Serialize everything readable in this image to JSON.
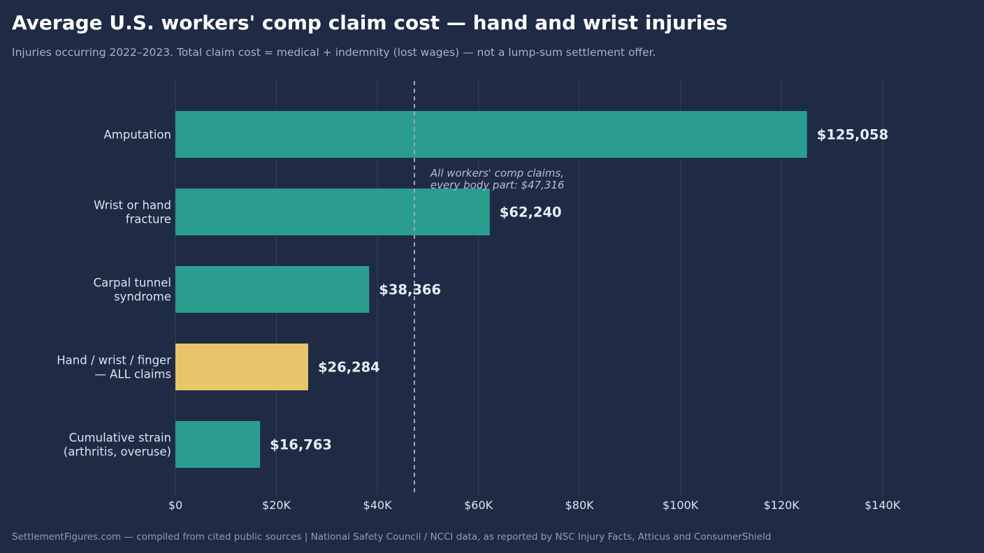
{
  "title": "Average U.S. workers' comp claim cost — hand and wrist injuries",
  "subtitle": "Injuries occurring 2022–2023. Total claim cost = medical + indemnity (lost wages) — not a lump-sum settlement offer.",
  "footer": "SettlementFigures.com — compiled from cited public sources  |  National Safety Council / NCCI data, as reported by NSC Injury Facts, Atticus and ConsumerShield",
  "colors": {
    "background": "#1f2b45",
    "bar": "#2a9d8f",
    "highlight": "#e9c46a",
    "reference_line": "#9aa7c0",
    "grid": "#34405c"
  },
  "chart_data": {
    "type": "bar",
    "orientation": "horizontal",
    "categories": [
      [
        "Amputation"
      ],
      [
        "Wrist or hand",
        "fracture"
      ],
      [
        "Carpal tunnel",
        "syndrome"
      ],
      [
        "Hand / wrist / finger",
        "— ALL claims"
      ],
      [
        "Cumulative strain",
        "(arthritis, overuse)"
      ]
    ],
    "values": [
      125058,
      62240,
      38366,
      26284,
      16763
    ],
    "value_labels": [
      "$125,058",
      "$62,240",
      "$38,366",
      "$26,284",
      "$16,763"
    ],
    "highlight_index": 3,
    "xlim": [
      0,
      150000
    ],
    "xticks": [
      0,
      20000,
      40000,
      60000,
      80000,
      100000,
      120000,
      140000
    ],
    "xtick_labels": [
      "$0",
      "$20K",
      "$40K",
      "$60K",
      "$80K",
      "$100K",
      "$120K",
      "$140K"
    ],
    "grid": "vertical",
    "reference": {
      "value": 47316,
      "label_lines": [
        "All workers' comp claims,",
        "every body part: $47,316"
      ]
    }
  }
}
